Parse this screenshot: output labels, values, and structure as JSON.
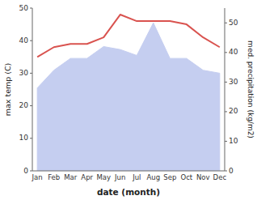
{
  "chart_data": {
    "type": "line",
    "xlabel": "date (month)",
    "ylabel": "max temp (C)",
    "y2label": "med. precipitation (kg/m2)",
    "categories": [
      "Jan",
      "Feb",
      "Mar",
      "Apr",
      "May",
      "Jun",
      "Jul",
      "Aug",
      "Sep",
      "Oct",
      "Nov",
      "Dec"
    ],
    "ylim": [
      0,
      50
    ],
    "yticks": [
      0,
      10,
      20,
      30,
      40,
      50
    ],
    "y2lim": [
      0,
      55
    ],
    "y2ticks": [
      0,
      10,
      20,
      30,
      40,
      50
    ],
    "series": [
      {
        "type": "area",
        "axis": "y2",
        "color": "#c5cef0",
        "values": [
          28,
          34,
          38,
          38,
          42,
          41,
          39,
          50,
          38,
          38,
          34,
          33
        ]
      },
      {
        "type": "line",
        "color": "#d9534f",
        "values": [
          35,
          38,
          39,
          39,
          41,
          48,
          46,
          46,
          46,
          45,
          41,
          38
        ]
      }
    ]
  }
}
